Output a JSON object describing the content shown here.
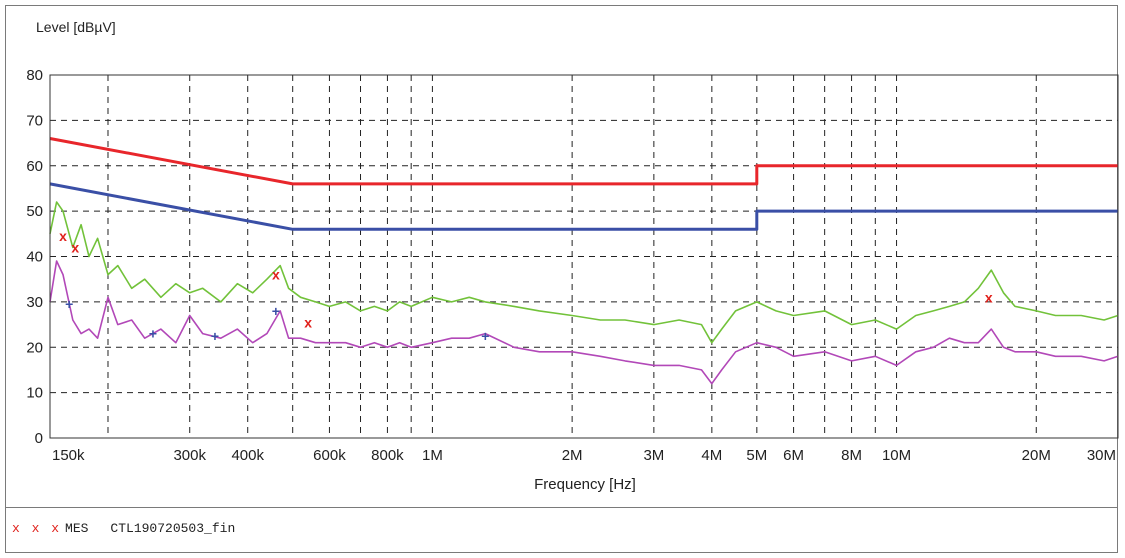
{
  "chart_data": {
    "type": "line",
    "ylabel": "Level [dBµV]",
    "xlabel": "Frequency [Hz]",
    "x_scale": "log",
    "xlim": [
      150000,
      30000000
    ],
    "ylim": [
      0,
      80
    ],
    "grid": true,
    "y_ticks": [
      0,
      10,
      20,
      30,
      40,
      50,
      60,
      70,
      80
    ],
    "x_ticks": [
      {
        "value": 150000,
        "label": "150k"
      },
      {
        "value": 300000,
        "label": "300k"
      },
      {
        "value": 400000,
        "label": "400k"
      },
      {
        "value": 600000,
        "label": "600k"
      },
      {
        "value": 800000,
        "label": "800k"
      },
      {
        "value": 1000000,
        "label": "1M"
      },
      {
        "value": 2000000,
        "label": "2M"
      },
      {
        "value": 3000000,
        "label": "3M"
      },
      {
        "value": 4000000,
        "label": "4M"
      },
      {
        "value": 5000000,
        "label": "5M"
      },
      {
        "value": 6000000,
        "label": "6M"
      },
      {
        "value": 8000000,
        "label": "8M"
      },
      {
        "value": 10000000,
        "label": "10M"
      },
      {
        "value": 20000000,
        "label": "20M"
      },
      {
        "value": 30000000,
        "label": "30M"
      }
    ],
    "x_gridlines": [
      150000,
      200000,
      300000,
      400000,
      500000,
      600000,
      700000,
      800000,
      900000,
      1000000,
      2000000,
      3000000,
      4000000,
      5000000,
      6000000,
      7000000,
      8000000,
      9000000,
      10000000,
      20000000,
      30000000
    ],
    "series": [
      {
        "color": "#e8262b",
        "x": [
          150000,
          500000,
          5000000,
          5000000,
          30000000
        ],
        "y": [
          66,
          56,
          56,
          60,
          60
        ]
      },
      {
        "color": "#3a4fa6",
        "x": [
          150000,
          500000,
          5000000,
          5000000,
          30000000
        ],
        "y": [
          56,
          46,
          46,
          50,
          50
        ]
      },
      {
        "color": "#72c23a",
        "x": [
          150000,
          155000,
          160000,
          168000,
          175000,
          182000,
          190000,
          200000,
          210000,
          225000,
          240000,
          260000,
          280000,
          300000,
          320000,
          350000,
          380000,
          410000,
          440000,
          470000,
          490000,
          520000,
          560000,
          600000,
          650000,
          700000,
          750000,
          800000,
          850000,
          900000,
          1000000,
          1100000,
          1200000,
          1300000,
          1500000,
          1700000,
          2000000,
          2300000,
          2600000,
          3000000,
          3400000,
          3800000,
          4000000,
          4200000,
          4500000,
          5000000,
          5500000,
          6000000,
          7000000,
          8000000,
          9000000,
          10000000,
          11000000,
          12000000,
          13000000,
          14000000,
          15000000,
          16000000,
          17000000,
          18000000,
          20000000,
          22000000,
          25000000,
          28000000,
          30000000
        ],
        "y": [
          45,
          52,
          50,
          42,
          47,
          40,
          44,
          36,
          38,
          33,
          35,
          31,
          34,
          32,
          33,
          30,
          34,
          32,
          35,
          38,
          33,
          31,
          30,
          29,
          30,
          28,
          29,
          28,
          30,
          29,
          31,
          30,
          31,
          30,
          29,
          28,
          27,
          26,
          26,
          25,
          26,
          25,
          21,
          24,
          28,
          30,
          28,
          27,
          28,
          25,
          26,
          24,
          27,
          28,
          29,
          30,
          33,
          37,
          32,
          29,
          28,
          27,
          27,
          26,
          27
        ]
      },
      {
        "color": "#b248b8",
        "x": [
          150000,
          155000,
          160000,
          168000,
          175000,
          182000,
          190000,
          200000,
          210000,
          225000,
          240000,
          260000,
          280000,
          300000,
          320000,
          350000,
          380000,
          410000,
          440000,
          470000,
          490000,
          520000,
          560000,
          600000,
          650000,
          700000,
          750000,
          800000,
          850000,
          900000,
          1000000,
          1100000,
          1200000,
          1300000,
          1500000,
          1700000,
          2000000,
          2300000,
          2600000,
          3000000,
          3400000,
          3800000,
          4000000,
          4200000,
          4500000,
          5000000,
          5500000,
          6000000,
          7000000,
          8000000,
          9000000,
          10000000,
          11000000,
          12000000,
          13000000,
          14000000,
          15000000,
          16000000,
          17000000,
          18000000,
          20000000,
          22000000,
          25000000,
          28000000,
          30000000
        ],
        "y": [
          30,
          39,
          36,
          26,
          23,
          24,
          22,
          31,
          25,
          26,
          22,
          24,
          21,
          27,
          23,
          22,
          24,
          21,
          23,
          28,
          22,
          22,
          21,
          21,
          21,
          20,
          21,
          20,
          21,
          20,
          21,
          22,
          22,
          23,
          20,
          19,
          19,
          18,
          17,
          16,
          16,
          15,
          12,
          15,
          19,
          21,
          20,
          18,
          19,
          17,
          18,
          16,
          19,
          20,
          22,
          21,
          21,
          24,
          20,
          19,
          19,
          18,
          18,
          17,
          18
        ]
      }
    ],
    "markers": [
      {
        "symbol": "x",
        "color": "#e0201b",
        "points": [
          [
            160000,
            44.5
          ],
          [
            170000,
            42
          ],
          [
            460000,
            36
          ],
          [
            540000,
            25.5
          ],
          [
            15800000,
            31
          ]
        ]
      },
      {
        "symbol": "+",
        "color": "#3a4fa6",
        "points": [
          [
            165000,
            29.5
          ],
          [
            250000,
            23
          ],
          [
            340000,
            22.5
          ],
          [
            460000,
            28
          ],
          [
            1300000,
            22.5
          ]
        ]
      }
    ],
    "legend": {
      "marker": "x x x",
      "label": "MES",
      "file": "CTL190720503_fin"
    }
  }
}
